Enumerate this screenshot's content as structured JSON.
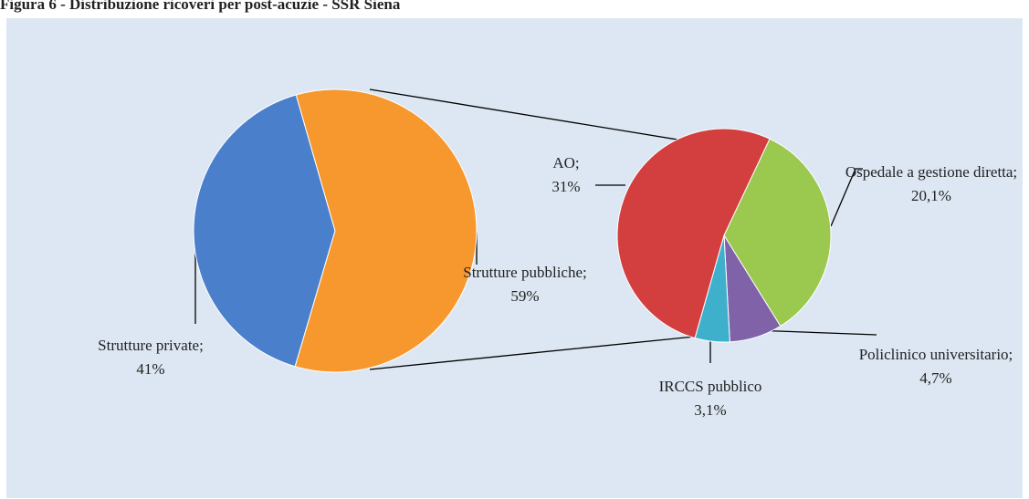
{
  "chart_data": [
    {
      "type": "pie",
      "title": "Figura 6 - Distribuzione ricoveri per post-acuzie - SSR Siena",
      "categories": [
        "Strutture private;",
        "Strutture pubbliche;"
      ],
      "values": [
        41,
        59
      ],
      "value_labels": [
        "41%",
        "59%"
      ],
      "colors": [
        "#4a7fcb",
        "#f7982f"
      ]
    },
    {
      "type": "pie",
      "categories": [
        "Ospedale a gestione diretta;",
        "Policlinico universitario;",
        "IRCCS pubblico",
        "AO;"
      ],
      "values": [
        20.1,
        4.7,
        3.1,
        31
      ],
      "value_labels": [
        "20,1%",
        "4,7%",
        "3,1%",
        "31%"
      ],
      "colors": [
        "#9bc84f",
        "#7f62a8",
        "#3fb0cc",
        "#d33f3f"
      ]
    }
  ]
}
